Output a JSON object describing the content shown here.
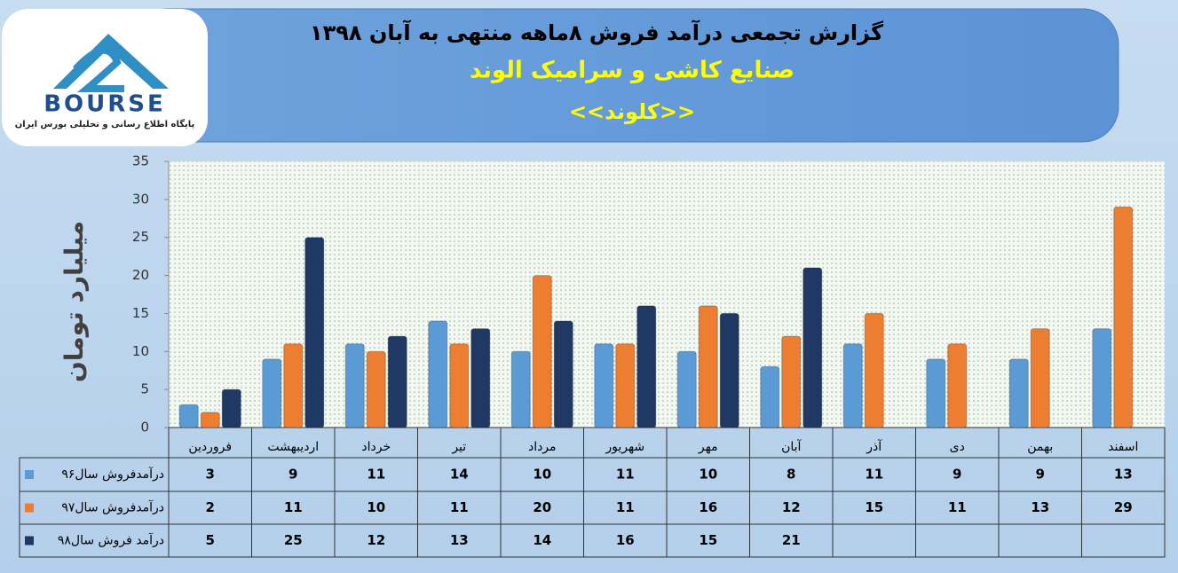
{
  "chart_data": {
    "type": "bar",
    "title": "گزارش تجمعی درآمد فروش ۸ماهه منتهی به آبان ۱۳۹۸",
    "subtitle": "صنایع کاشی و سرامیک الوند",
    "symbol": "<<کلوند>>",
    "y_label": "میلیارد تومان",
    "logo_text": "BOURSE",
    "logo_caption": "پایگاه اطلاع رسانی و تحلیلی بورس ایران",
    "categories": [
      "فروردین",
      "اردیبهشت",
      "خرداد",
      "تیر",
      "مرداد",
      "شهریور",
      "مهر",
      "آبان",
      "آذر",
      "دی",
      "بهمن",
      "اسفند"
    ],
    "series": [
      {
        "name": "درآمدفروش سال۹۶",
        "color": "#5b9bd5",
        "values": [
          3,
          9,
          11,
          14,
          10,
          11,
          10,
          8,
          11,
          9,
          9,
          13
        ]
      },
      {
        "name": "درآمدفروش سال۹۷",
        "color": "#ed7d31",
        "values": [
          2,
          11,
          10,
          11,
          20,
          11,
          16,
          12,
          15,
          11,
          13,
          29
        ]
      },
      {
        "name": "درآمد فروش سال۹۸",
        "color": "#1f3864",
        "values": [
          5,
          25,
          12,
          13,
          14,
          16,
          15,
          21,
          null,
          null,
          null,
          null
        ]
      }
    ],
    "ylim": [
      0,
      35
    ],
    "yticks": [
      0,
      5,
      10,
      15,
      20,
      25,
      30,
      35
    ],
    "grid": false
  }
}
